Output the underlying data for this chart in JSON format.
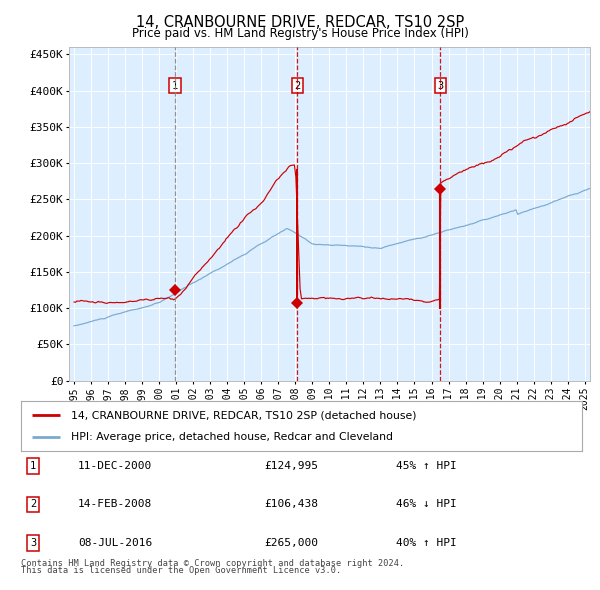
{
  "title": "14, CRANBOURNE DRIVE, REDCAR, TS10 2SP",
  "subtitle": "Price paid vs. HM Land Registry's House Price Index (HPI)",
  "background_color": "#ffffff",
  "plot_bg_color": "#ddeeff",
  "ylim": [
    0,
    460000
  ],
  "yticks": [
    0,
    50000,
    100000,
    150000,
    200000,
    250000,
    300000,
    350000,
    400000,
    450000
  ],
  "ytick_labels": [
    "£0",
    "£50K",
    "£100K",
    "£150K",
    "£200K",
    "£250K",
    "£300K",
    "£350K",
    "£400K",
    "£450K"
  ],
  "year_start": 1995,
  "year_end": 2025,
  "red_line_color": "#cc0000",
  "blue_line_color": "#7aaad0",
  "sale1_date": 2000.94,
  "sale1_price": 124995,
  "sale1_label": "1",
  "sale2_date": 2008.12,
  "sale2_price": 106438,
  "sale2_label": "2",
  "sale3_date": 2016.52,
  "sale3_price": 265000,
  "sale3_label": "3",
  "legend_line1": "14, CRANBOURNE DRIVE, REDCAR, TS10 2SP (detached house)",
  "legend_line2": "HPI: Average price, detached house, Redcar and Cleveland",
  "table_rows": [
    {
      "num": "1",
      "date": "11-DEC-2000",
      "price": "£124,995",
      "change": "45% ↑ HPI"
    },
    {
      "num": "2",
      "date": "14-FEB-2008",
      "price": "£106,438",
      "change": "46% ↓ HPI"
    },
    {
      "num": "3",
      "date": "08-JUL-2016",
      "price": "£265,000",
      "change": "40% ↑ HPI"
    }
  ],
  "footer1": "Contains HM Land Registry data © Crown copyright and database right 2024.",
  "footer2": "This data is licensed under the Open Government Licence v3.0."
}
